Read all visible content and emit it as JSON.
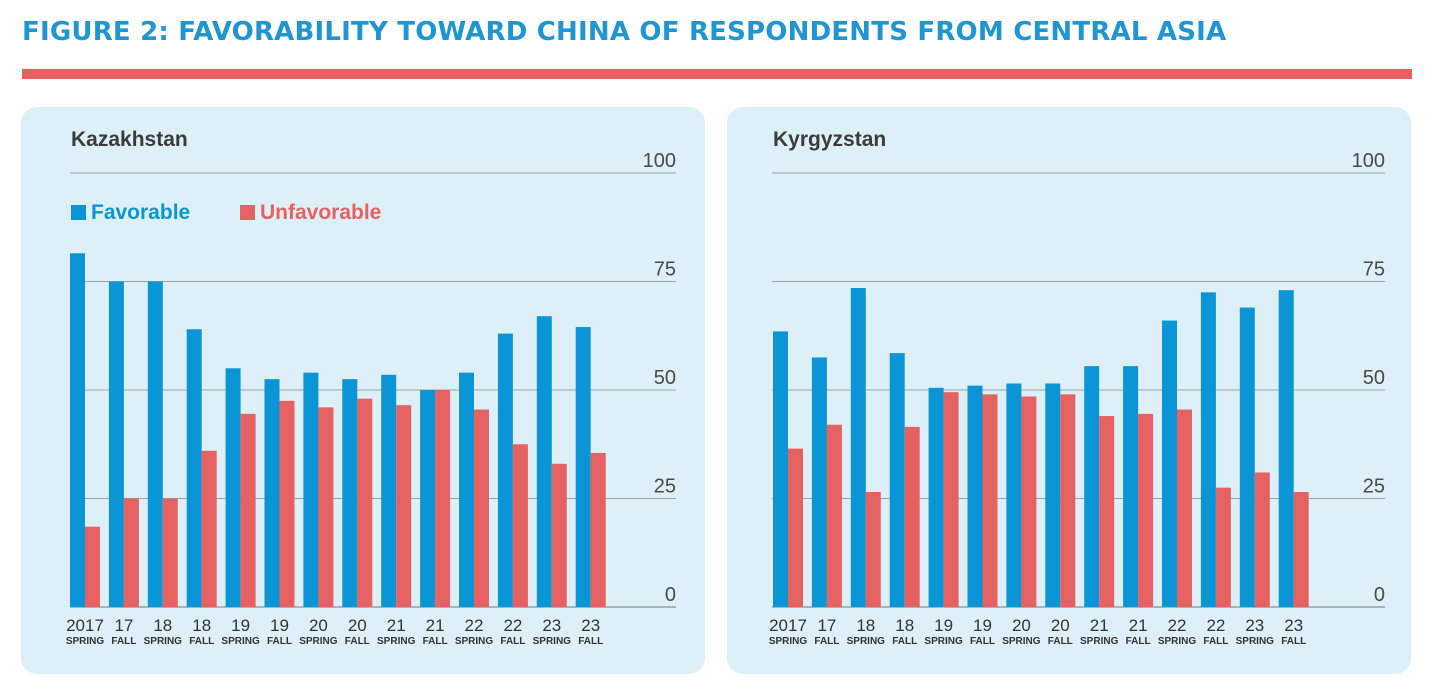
{
  "figure": {
    "title": "FIGURE 2: FAVORABILITY TOWARD CHINA OF RESPONDENTS FROM CENTRAL ASIA"
  },
  "legend": {
    "favorable": "Favorable",
    "unfavorable": "Unfavorable"
  },
  "colors": {
    "title": "#1e96d2",
    "rule": "#e76060",
    "favorable": "#0a96d6",
    "unfavorable": "#e66262",
    "panel_bg": "#ddf0f7",
    "gridline": "#9aa0a4"
  },
  "chart_data": [
    {
      "type": "bar",
      "title": "Kazakhstan",
      "ylim": [
        0,
        100
      ],
      "yticks": [
        "0",
        "25",
        "50",
        "75",
        "100"
      ],
      "categories": [
        {
          "main": "2017",
          "sub": "SPRING"
        },
        {
          "main": "17",
          "sub": "FALL"
        },
        {
          "main": "18",
          "sub": "SPRING"
        },
        {
          "main": "18",
          "sub": "FALL"
        },
        {
          "main": "19",
          "sub": "SPRING"
        },
        {
          "main": "19",
          "sub": "FALL"
        },
        {
          "main": "20",
          "sub": "SPRING"
        },
        {
          "main": "20",
          "sub": "FALL"
        },
        {
          "main": "21",
          "sub": "SPRING"
        },
        {
          "main": "21",
          "sub": "FALL"
        },
        {
          "main": "22",
          "sub": "SPRING"
        },
        {
          "main": "22",
          "sub": "FALL"
        },
        {
          "main": "23",
          "sub": "SPRING"
        },
        {
          "main": "23",
          "sub": "FALL"
        }
      ],
      "series": [
        {
          "name": "Favorable",
          "values": [
            81.5,
            75,
            75,
            64,
            55,
            52.5,
            54,
            52.5,
            53.5,
            50,
            54,
            63,
            67,
            64.5
          ]
        },
        {
          "name": "Unfavorable",
          "values": [
            18.5,
            25,
            25,
            36,
            44.5,
            47.5,
            46,
            48,
            46.5,
            50,
            45.5,
            37.5,
            33,
            35.5
          ]
        }
      ]
    },
    {
      "type": "bar",
      "title": "Kyrgyzstan",
      "ylim": [
        0,
        100
      ],
      "yticks": [
        "0",
        "25",
        "50",
        "75",
        "100"
      ],
      "categories": [
        {
          "main": "2017",
          "sub": "SPRING"
        },
        {
          "main": "17",
          "sub": "FALL"
        },
        {
          "main": "18",
          "sub": "SPRING"
        },
        {
          "main": "18",
          "sub": "FALL"
        },
        {
          "main": "19",
          "sub": "SPRING"
        },
        {
          "main": "19",
          "sub": "FALL"
        },
        {
          "main": "20",
          "sub": "SPRING"
        },
        {
          "main": "20",
          "sub": "FALL"
        },
        {
          "main": "21",
          "sub": "SPRING"
        },
        {
          "main": "21",
          "sub": "FALL"
        },
        {
          "main": "22",
          "sub": "SPRING"
        },
        {
          "main": "22",
          "sub": "FALL"
        },
        {
          "main": "23",
          "sub": "SPRING"
        },
        {
          "main": "23",
          "sub": "FALL"
        }
      ],
      "series": [
        {
          "name": "Favorable",
          "values": [
            63.5,
            57.5,
            73.5,
            58.5,
            50.5,
            51,
            51.5,
            51.5,
            55.5,
            55.5,
            66,
            72.5,
            69,
            73
          ]
        },
        {
          "name": "Unfavorable",
          "values": [
            36.5,
            42,
            26.5,
            41.5,
            49.5,
            49,
            48.5,
            49,
            44,
            44.5,
            45.5,
            27.5,
            31,
            26.5
          ]
        }
      ]
    }
  ]
}
